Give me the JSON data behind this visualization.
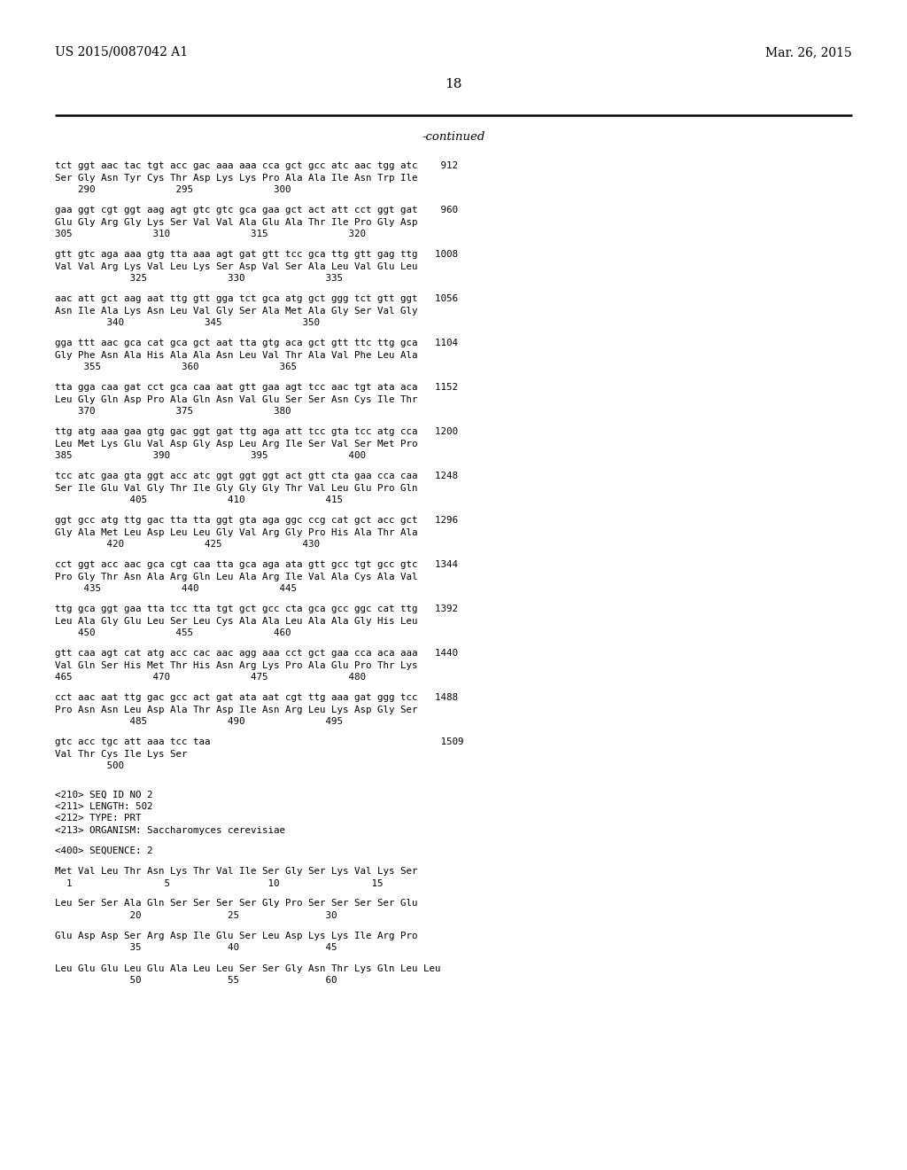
{
  "header_left": "US 2015/0087042 A1",
  "header_right": "Mar. 26, 2015",
  "page_number": "18",
  "continued": "-continued",
  "background_color": "#ffffff",
  "text_color": "#000000",
  "lines": [
    "tct ggt aac tac tgt acc gac aaa aaa cca gct gcc atc aac tgg atc    912",
    "Ser Gly Asn Tyr Cys Thr Asp Lys Lys Pro Ala Ala Ile Asn Trp Ile",
    "    290              295              300",
    "",
    "gaa ggt cgt ggt aag agt gtc gtc gca gaa gct act att cct ggt gat    960",
    "Glu Gly Arg Gly Lys Ser Val Val Ala Glu Ala Thr Ile Pro Gly Asp",
    "305              310              315              320",
    "",
    "gtt gtc aga aaa gtg tta aaa agt gat gtt tcc gca ttg gtt gag ttg   1008",
    "Val Val Arg Lys Val Leu Lys Ser Asp Val Ser Ala Leu Val Glu Leu",
    "             325              330              335",
    "",
    "aac att gct aag aat ttg gtt gga tct gca atg gct ggg tct gtt ggt   1056",
    "Asn Ile Ala Lys Asn Leu Val Gly Ser Ala Met Ala Gly Ser Val Gly",
    "         340              345              350",
    "",
    "gga ttt aac gca cat gca gct aat tta gtg aca gct gtt ttc ttg gca   1104",
    "Gly Phe Asn Ala His Ala Ala Asn Leu Val Thr Ala Val Phe Leu Ala",
    "     355              360              365",
    "",
    "tta gga caa gat cct gca caa aat gtt gaa agt tcc aac tgt ata aca   1152",
    "Leu Gly Gln Asp Pro Ala Gln Asn Val Glu Ser Ser Asn Cys Ile Thr",
    "    370              375              380",
    "",
    "ttg atg aaa gaa gtg gac ggt gat ttg aga att tcc gta tcc atg cca   1200",
    "Leu Met Lys Glu Val Asp Gly Asp Leu Arg Ile Ser Val Ser Met Pro",
    "385              390              395              400",
    "",
    "tcc atc gaa gta ggt acc atc ggt ggt ggt act gtt cta gaa cca caa   1248",
    "Ser Ile Glu Val Gly Thr Ile Gly Gly Gly Thr Val Leu Glu Pro Gln",
    "             405              410              415",
    "",
    "ggt gcc atg ttg gac tta tta ggt gta aga ggc ccg cat gct acc gct   1296",
    "Gly Ala Met Leu Asp Leu Leu Gly Val Arg Gly Pro His Ala Thr Ala",
    "         420              425              430",
    "",
    "cct ggt acc aac gca cgt caa tta gca aga ata gtt gcc tgt gcc gtc   1344",
    "Pro Gly Thr Asn Ala Arg Gln Leu Ala Arg Ile Val Ala Cys Ala Val",
    "     435              440              445",
    "",
    "ttg gca ggt gaa tta tcc tta tgt gct gcc cta gca gcc ggc cat ttg   1392",
    "Leu Ala Gly Glu Leu Ser Leu Cys Ala Ala Leu Ala Ala Gly His Leu",
    "    450              455              460",
    "",
    "gtt caa agt cat atg acc cac aac agg aaa cct gct gaa cca aca aaa   1440",
    "Val Gln Ser His Met Thr His Asn Arg Lys Pro Ala Glu Pro Thr Lys",
    "465              470              475              480",
    "",
    "cct aac aat ttg gac gcc act gat ata aat cgt ttg aaa gat ggg tcc   1488",
    "Pro Asn Asn Leu Asp Ala Thr Asp Ile Asn Arg Leu Lys Asp Gly Ser",
    "             485              490              495",
    "",
    "gtc acc tgc att aaa tcc taa                                        1509",
    "Val Thr Cys Ile Lys Ser",
    "         500",
    "",
    "",
    "<210> SEQ ID NO 2",
    "<211> LENGTH: 502",
    "<212> TYPE: PRT",
    "<213> ORGANISM: Saccharomyces cerevisiae",
    "",
    "<400> SEQUENCE: 2",
    "",
    "Met Val Leu Thr Asn Lys Thr Val Ile Ser Gly Ser Lys Val Lys Ser",
    "  1                5                 10                15",
    "",
    "Leu Ser Ser Ala Gln Ser Ser Ser Ser Gly Pro Ser Ser Ser Ser Glu",
    "             20               25               30",
    "",
    "Glu Asp Asp Ser Arg Asp Ile Glu Ser Leu Asp Lys Lys Ile Arg Pro",
    "             35               40               45",
    "",
    "Leu Glu Glu Leu Glu Ala Leu Leu Ser Ser Gly Asn Thr Lys Gln Leu Leu",
    "             50               55               60"
  ]
}
